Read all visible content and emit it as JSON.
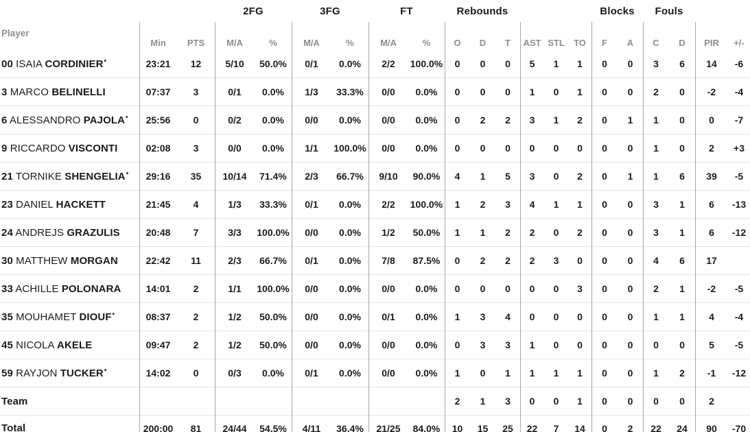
{
  "table": {
    "starter_marker": "•",
    "groups": {
      "fg2": "2FG",
      "fg3": "3FG",
      "ft": "FT",
      "rebounds": "Rebounds",
      "blocks": "Blocks",
      "fouls": "Fouls"
    },
    "column_labels": [
      "Player",
      "Min",
      "PTS",
      "M/A",
      "%",
      "M/A",
      "%",
      "M/A",
      "%",
      "O",
      "D",
      "T",
      "AST",
      "STL",
      "TO",
      "F",
      "A",
      "C",
      "D",
      "PIR",
      "+/-"
    ]
  },
  "players": [
    {
      "number": "00",
      "first": "ISAIA",
      "last": "CORDINIER",
      "starter": true,
      "min": "23:21",
      "pts": "12",
      "fg2_ma": "5/10",
      "fg2_pct": "50.0%",
      "fg3_ma": "0/1",
      "fg3_pct": "0.0%",
      "ft_ma": "2/2",
      "ft_pct": "100.0%",
      "reb_o": "0",
      "reb_d": "0",
      "reb_t": "0",
      "ast": "5",
      "stl": "1",
      "to": "1",
      "blk_f": "0",
      "blk_a": "0",
      "foul_c": "3",
      "foul_d": "6",
      "pir": "14",
      "pm": "-6"
    },
    {
      "number": "3",
      "first": "MARCO",
      "last": "BELINELLI",
      "starter": false,
      "min": "07:37",
      "pts": "3",
      "fg2_ma": "0/1",
      "fg2_pct": "0.0%",
      "fg3_ma": "1/3",
      "fg3_pct": "33.3%",
      "ft_ma": "0/0",
      "ft_pct": "0.0%",
      "reb_o": "0",
      "reb_d": "0",
      "reb_t": "0",
      "ast": "1",
      "stl": "0",
      "to": "1",
      "blk_f": "0",
      "blk_a": "0",
      "foul_c": "2",
      "foul_d": "0",
      "pir": "-2",
      "pm": "-4"
    },
    {
      "number": "6",
      "first": "ALESSANDRO",
      "last": "PAJOLA",
      "starter": true,
      "min": "25:56",
      "pts": "0",
      "fg2_ma": "0/2",
      "fg2_pct": "0.0%",
      "fg3_ma": "0/0",
      "fg3_pct": "0.0%",
      "ft_ma": "0/0",
      "ft_pct": "0.0%",
      "reb_o": "0",
      "reb_d": "2",
      "reb_t": "2",
      "ast": "3",
      "stl": "1",
      "to": "2",
      "blk_f": "0",
      "blk_a": "1",
      "foul_c": "1",
      "foul_d": "0",
      "pir": "0",
      "pm": "-7"
    },
    {
      "number": "9",
      "first": "RICCARDO",
      "last": "VISCONTI",
      "starter": false,
      "min": "02:08",
      "pts": "3",
      "fg2_ma": "0/0",
      "fg2_pct": "0.0%",
      "fg3_ma": "1/1",
      "fg3_pct": "100.0%",
      "ft_ma": "0/0",
      "ft_pct": "0.0%",
      "reb_o": "0",
      "reb_d": "0",
      "reb_t": "0",
      "ast": "0",
      "stl": "0",
      "to": "0",
      "blk_f": "0",
      "blk_a": "0",
      "foul_c": "1",
      "foul_d": "0",
      "pir": "2",
      "pm": "+3"
    },
    {
      "number": "21",
      "first": "TORNIKE",
      "last": "SHENGELIA",
      "starter": true,
      "min": "29:16",
      "pts": "35",
      "fg2_ma": "10/14",
      "fg2_pct": "71.4%",
      "fg3_ma": "2/3",
      "fg3_pct": "66.7%",
      "ft_ma": "9/10",
      "ft_pct": "90.0%",
      "reb_o": "4",
      "reb_d": "1",
      "reb_t": "5",
      "ast": "3",
      "stl": "0",
      "to": "2",
      "blk_f": "0",
      "blk_a": "1",
      "foul_c": "1",
      "foul_d": "6",
      "pir": "39",
      "pm": "-5"
    },
    {
      "number": "23",
      "first": "DANIEL",
      "last": "HACKETT",
      "starter": false,
      "min": "21:45",
      "pts": "4",
      "fg2_ma": "1/3",
      "fg2_pct": "33.3%",
      "fg3_ma": "0/1",
      "fg3_pct": "0.0%",
      "ft_ma": "2/2",
      "ft_pct": "100.0%",
      "reb_o": "1",
      "reb_d": "2",
      "reb_t": "3",
      "ast": "4",
      "stl": "1",
      "to": "1",
      "blk_f": "0",
      "blk_a": "0",
      "foul_c": "3",
      "foul_d": "1",
      "pir": "6",
      "pm": "-13"
    },
    {
      "number": "24",
      "first": "ANDREJS",
      "last": "GRAZULIS",
      "starter": false,
      "min": "20:48",
      "pts": "7",
      "fg2_ma": "3/3",
      "fg2_pct": "100.0%",
      "fg3_ma": "0/0",
      "fg3_pct": "0.0%",
      "ft_ma": "1/2",
      "ft_pct": "50.0%",
      "reb_o": "1",
      "reb_d": "1",
      "reb_t": "2",
      "ast": "2",
      "stl": "0",
      "to": "2",
      "blk_f": "0",
      "blk_a": "0",
      "foul_c": "3",
      "foul_d": "1",
      "pir": "6",
      "pm": "-12"
    },
    {
      "number": "30",
      "first": "MATTHEW",
      "last": "MORGAN",
      "starter": false,
      "min": "22:42",
      "pts": "11",
      "fg2_ma": "2/3",
      "fg2_pct": "66.7%",
      "fg3_ma": "0/1",
      "fg3_pct": "0.0%",
      "ft_ma": "7/8",
      "ft_pct": "87.5%",
      "reb_o": "0",
      "reb_d": "2",
      "reb_t": "2",
      "ast": "2",
      "stl": "3",
      "to": "0",
      "blk_f": "0",
      "blk_a": "0",
      "foul_c": "4",
      "foul_d": "6",
      "pir": "17",
      "pm": ""
    },
    {
      "number": "33",
      "first": "ACHILLE",
      "last": "POLONARA",
      "starter": false,
      "min": "14:01",
      "pts": "2",
      "fg2_ma": "1/1",
      "fg2_pct": "100.0%",
      "fg3_ma": "0/0",
      "fg3_pct": "0.0%",
      "ft_ma": "0/0",
      "ft_pct": "0.0%",
      "reb_o": "0",
      "reb_d": "0",
      "reb_t": "0",
      "ast": "0",
      "stl": "0",
      "to": "3",
      "blk_f": "0",
      "blk_a": "0",
      "foul_c": "2",
      "foul_d": "1",
      "pir": "-2",
      "pm": "-5"
    },
    {
      "number": "35",
      "first": "MOUHAMET",
      "last": "DIOUF",
      "starter": true,
      "min": "08:37",
      "pts": "2",
      "fg2_ma": "1/2",
      "fg2_pct": "50.0%",
      "fg3_ma": "0/0",
      "fg3_pct": "0.0%",
      "ft_ma": "0/1",
      "ft_pct": "0.0%",
      "reb_o": "1",
      "reb_d": "3",
      "reb_t": "4",
      "ast": "0",
      "stl": "0",
      "to": "0",
      "blk_f": "0",
      "blk_a": "0",
      "foul_c": "1",
      "foul_d": "1",
      "pir": "4",
      "pm": "-4"
    },
    {
      "number": "45",
      "first": "NICOLA",
      "last": "AKELE",
      "starter": false,
      "min": "09:47",
      "pts": "2",
      "fg2_ma": "1/2",
      "fg2_pct": "50.0%",
      "fg3_ma": "0/0",
      "fg3_pct": "0.0%",
      "ft_ma": "0/0",
      "ft_pct": "0.0%",
      "reb_o": "0",
      "reb_d": "3",
      "reb_t": "3",
      "ast": "1",
      "stl": "0",
      "to": "0",
      "blk_f": "0",
      "blk_a": "0",
      "foul_c": "0",
      "foul_d": "0",
      "pir": "5",
      "pm": "-5"
    },
    {
      "number": "59",
      "first": "RAYJON",
      "last": "TUCKER",
      "starter": true,
      "min": "14:02",
      "pts": "0",
      "fg2_ma": "0/3",
      "fg2_pct": "0.0%",
      "fg3_ma": "0/1",
      "fg3_pct": "0.0%",
      "ft_ma": "0/0",
      "ft_pct": "0.0%",
      "reb_o": "1",
      "reb_d": "0",
      "reb_t": "1",
      "ast": "1",
      "stl": "1",
      "to": "1",
      "blk_f": "0",
      "blk_a": "0",
      "foul_c": "1",
      "foul_d": "2",
      "pir": "-1",
      "pm": "-12"
    }
  ],
  "team_row": {
    "label": "Team",
    "min": "",
    "pts": "",
    "fg2_ma": "",
    "fg2_pct": "",
    "fg3_ma": "",
    "fg3_pct": "",
    "ft_ma": "",
    "ft_pct": "",
    "reb_o": "2",
    "reb_d": "1",
    "reb_t": "3",
    "ast": "0",
    "stl": "0",
    "to": "1",
    "blk_f": "0",
    "blk_a": "0",
    "foul_c": "0",
    "foul_d": "0",
    "pir": "2",
    "pm": ""
  },
  "total_row": {
    "label": "Total",
    "min": "200:00",
    "pts": "81",
    "fg2_ma": "24/44",
    "fg2_pct": "54.5%",
    "fg3_ma": "4/11",
    "fg3_pct": "36.4%",
    "ft_ma": "21/25",
    "ft_pct": "84.0%",
    "reb_o": "10",
    "reb_d": "15",
    "reb_t": "25",
    "ast": "22",
    "stl": "7",
    "to": "14",
    "blk_f": "0",
    "blk_a": "2",
    "foul_c": "22",
    "foul_d": "24",
    "pir": "90",
    "pm": "-70"
  }
}
